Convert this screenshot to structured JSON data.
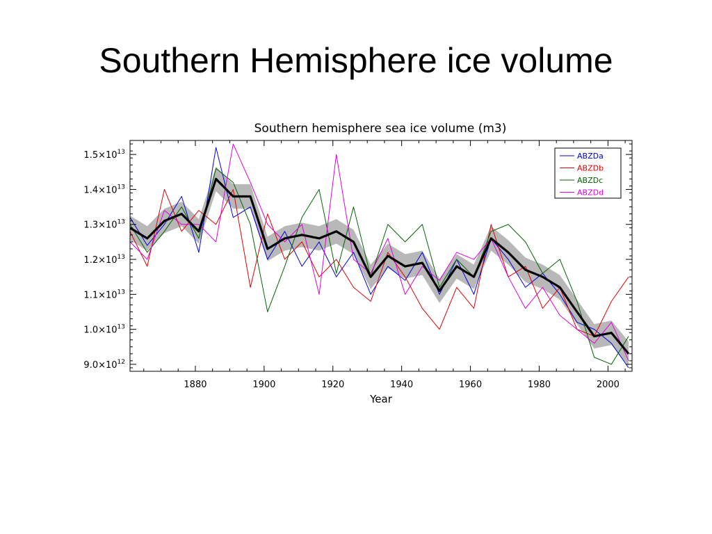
{
  "slide": {
    "title": "Southern Hemisphere ice volume"
  },
  "colors": {
    "ABZDa": "#0000dd",
    "ABZDb": "#e00000",
    "ABZDc": "#006400",
    "ABZDd": "#e000e0",
    "mean": "#000000",
    "band": "#a0a0a0"
  },
  "chart_data": {
    "type": "line",
    "title": "Southern hemisphere sea ice volume (m3)",
    "xlabel": "Year",
    "ylabel": "",
    "xlim": [
      1861,
      2007
    ],
    "ylim": [
      8800000000000.0,
      15400000000000.0
    ],
    "xticks": [
      1880,
      1900,
      1920,
      1940,
      1960,
      1980,
      2000
    ],
    "yticks": [
      {
        "value": 9000000000000.0,
        "mantissa": "9.0",
        "exp": "12"
      },
      {
        "value": 10000000000000.0,
        "mantissa": "1.0",
        "exp": "13"
      },
      {
        "value": 11000000000000.0,
        "mantissa": "1.1",
        "exp": "13"
      },
      {
        "value": 12000000000000.0,
        "mantissa": "1.2",
        "exp": "13"
      },
      {
        "value": 13000000000000.0,
        "mantissa": "1.3",
        "exp": "13"
      },
      {
        "value": 14000000000000.0,
        "mantissa": "1.4",
        "exp": "13"
      },
      {
        "value": 15000000000000.0,
        "mantissa": "1.5",
        "exp": "13"
      }
    ],
    "grid": false,
    "legend_position": "top-right",
    "legend": [
      "ABZDa",
      "ABZDb",
      "ABZDc",
      "ABZDd"
    ],
    "x": [
      1861,
      1866,
      1871,
      1876,
      1881,
      1886,
      1891,
      1896,
      1901,
      1906,
      1911,
      1916,
      1921,
      1926,
      1931,
      1936,
      1941,
      1946,
      1951,
      1956,
      1961,
      1966,
      1971,
      1976,
      1981,
      1986,
      1991,
      1996,
      2001,
      2006
    ],
    "series": [
      {
        "name": "ABZDa",
        "values": [
          13200000000000.0,
          12400000000000.0,
          13000000000000.0,
          13800000000000.0,
          12200000000000.0,
          15200000000000.0,
          13200000000000.0,
          13500000000000.0,
          12000000000000.0,
          12800000000000.0,
          11800000000000.0,
          12500000000000.0,
          11500000000000.0,
          12200000000000.0,
          11000000000000.0,
          11800000000000.0,
          11400000000000.0,
          12200000000000.0,
          11000000000000.0,
          12000000000000.0,
          11000000000000.0,
          12600000000000.0,
          12000000000000.0,
          11200000000000.0,
          11600000000000.0,
          11000000000000.0,
          10200000000000.0,
          10000000000000.0,
          9600000000000.0,
          8900000000000.0
        ]
      },
      {
        "name": "ABZDb",
        "values": [
          12800000000000.0,
          11800000000000.0,
          14000000000000.0,
          12800000000000.0,
          13400000000000.0,
          13000000000000.0,
          14000000000000.0,
          11200000000000.0,
          13300000000000.0,
          12000000000000.0,
          12500000000000.0,
          11500000000000.0,
          12000000000000.0,
          11200000000000.0,
          10800000000000.0,
          12200000000000.0,
          11500000000000.0,
          10600000000000.0,
          10000000000000.0,
          11200000000000.0,
          10600000000000.0,
          13000000000000.0,
          11500000000000.0,
          11800000000000.0,
          10600000000000.0,
          11200000000000.0,
          10000000000000.0,
          9800000000000.0,
          10800000000000.0,
          11500000000000.0
        ]
      },
      {
        "name": "ABZDc",
        "values": [
          13000000000000.0,
          12200000000000.0,
          12800000000000.0,
          13500000000000.0,
          12600000000000.0,
          14600000000000.0,
          14200000000000.0,
          13000000000000.0,
          10500000000000.0,
          11800000000000.0,
          13200000000000.0,
          14000000000000.0,
          11600000000000.0,
          13500000000000.0,
          11500000000000.0,
          13000000000000.0,
          12500000000000.0,
          13000000000000.0,
          11200000000000.0,
          12000000000000.0,
          11500000000000.0,
          12800000000000.0,
          13000000000000.0,
          12500000000000.0,
          11600000000000.0,
          12000000000000.0,
          10800000000000.0,
          9200000000000.0,
          9000000000000.0,
          9800000000000.0
        ]
      },
      {
        "name": "ABZDd",
        "values": [
          12500000000000.0,
          12000000000000.0,
          13400000000000.0,
          13000000000000.0,
          13000000000000.0,
          12500000000000.0,
          15300000000000.0,
          14200000000000.0,
          13000000000000.0,
          12500000000000.0,
          13000000000000.0,
          11000000000000.0,
          15000000000000.0,
          12000000000000.0,
          11600000000000.0,
          12600000000000.0,
          11000000000000.0,
          11800000000000.0,
          11400000000000.0,
          12200000000000.0,
          12000000000000.0,
          12600000000000.0,
          11500000000000.0,
          10600000000000.0,
          11200000000000.0,
          10400000000000.0,
          10000000000000.0,
          9600000000000.0,
          10200000000000.0,
          9100000000000.0
        ]
      },
      {
        "name": "mean",
        "values": [
          12900000000000.0,
          12600000000000.0,
          13100000000000.0,
          13300000000000.0,
          12800000000000.0,
          14300000000000.0,
          13800000000000.0,
          13800000000000.0,
          12300000000000.0,
          12600000000000.0,
          12700000000000.0,
          12600000000000.0,
          12800000000000.0,
          12500000000000.0,
          11500000000000.0,
          12100000000000.0,
          11800000000000.0,
          11900000000000.0,
          11100000000000.0,
          11800000000000.0,
          11500000000000.0,
          12600000000000.0,
          12200000000000.0,
          11700000000000.0,
          11500000000000.0,
          11200000000000.0,
          10500000000000.0,
          9800000000000.0,
          9900000000000.0,
          9300000000000.0
        ],
        "band": 350000000000.0
      }
    ]
  }
}
